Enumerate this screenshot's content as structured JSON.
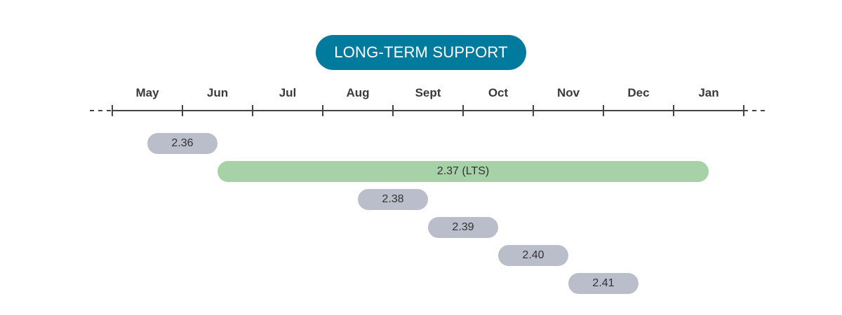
{
  "title": "LONG-TERM SUPPORT",
  "colors": {
    "title_bg": "#007b9e",
    "standard_release": "#babdca",
    "lts_release": "#a7d1a7",
    "axis": "#444444"
  },
  "months": [
    "May",
    "Jun",
    "Jul",
    "Aug",
    "Sept",
    "Oct",
    "Nov",
    "Dec",
    "Jan"
  ],
  "releases": [
    {
      "label": "2.36",
      "start": "May",
      "end": "Jun",
      "lts": false
    },
    {
      "label": "2.37 (LTS)",
      "start": "Jun",
      "end": "Jan",
      "lts": true
    },
    {
      "label": "2.38",
      "start": "Aug",
      "end": "Sept",
      "lts": false
    },
    {
      "label": "2.39",
      "start": "Sept",
      "end": "Oct",
      "lts": false
    },
    {
      "label": "2.40",
      "start": "Oct",
      "end": "Nov",
      "lts": false
    },
    {
      "label": "2.41",
      "start": "Nov",
      "end": "Dec",
      "lts": false
    }
  ]
}
